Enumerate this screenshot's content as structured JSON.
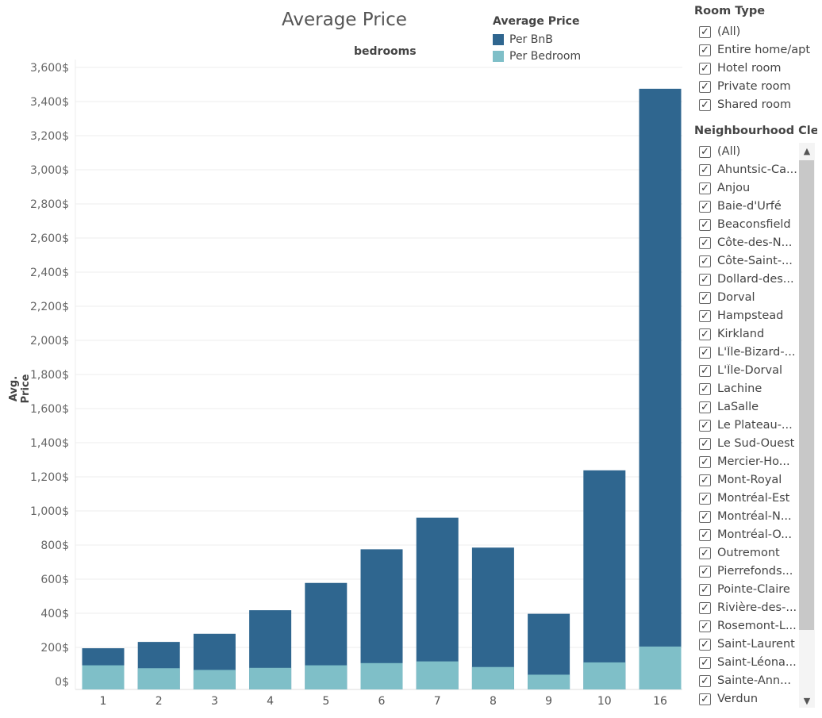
{
  "chart_data": {
    "type": "bar",
    "stacked": true,
    "title": "Average Price",
    "subtitle": "bedrooms",
    "ylabel": "Avg. Price",
    "xlabel": "",
    "ylim": [
      0,
      3600
    ],
    "yticks": [
      0,
      200,
      400,
      600,
      800,
      1000,
      1200,
      1400,
      1600,
      1800,
      2000,
      2200,
      2400,
      2600,
      2800,
      3000,
      3200,
      3400,
      3600
    ],
    "ytick_labels": [
      "0$",
      "200$",
      "400$",
      "600$",
      "800$",
      "1,000$",
      "1,200$",
      "1,400$",
      "1,600$",
      "1,800$",
      "2,000$",
      "2,200$",
      "2,400$",
      "2,600$",
      "2,800$",
      "3,000$",
      "3,200$",
      "3,400$",
      "3,600$"
    ],
    "categories": [
      "1",
      "2",
      "3",
      "4",
      "5",
      "6",
      "7",
      "8",
      "9",
      "10",
      "16"
    ],
    "series": [
      {
        "name": "Per Bedroom",
        "color": "#7fbfc8",
        "values": [
          95,
          78,
          68,
          80,
          95,
          108,
          118,
          85,
          40,
          112,
          205
        ]
      },
      {
        "name": "Per BnB",
        "color": "#2f668f",
        "values": [
          195,
          232,
          280,
          418,
          578,
          775,
          960,
          785,
          397,
          1238,
          3475
        ]
      }
    ],
    "legend": {
      "title": "Average Price",
      "position": "top-right",
      "items": [
        {
          "label": "Per BnB",
          "color": "#2f668f"
        },
        {
          "label": "Per Bedroom",
          "color": "#7fbfc8"
        }
      ]
    },
    "grid": true
  },
  "filters": {
    "room_type": {
      "title": "Room Type",
      "items": [
        "(All)",
        "Entire home/apt",
        "Hotel room",
        "Private room",
        "Shared room"
      ]
    },
    "neighbourhood": {
      "title": "Neighbourhood Clea..",
      "items": [
        "(All)",
        "Ahuntsic-Ca...",
        "Anjou",
        "Baie-d'Urfé",
        "Beaconsfield",
        "Côte-des-N...",
        "Côte-Saint-...",
        "Dollard-des...",
        "Dorval",
        "Hampstead",
        "Kirkland",
        "L'Île-Bizard-...",
        "L'Île-Dorval",
        "Lachine",
        "LaSalle",
        "Le Plateau-...",
        "Le Sud-Ouest",
        "Mercier-Ho...",
        "Mont-Royal",
        "Montréal-Est",
        "Montréal-N...",
        "Montréal-O...",
        "Outremont",
        "Pierrefonds...",
        "Pointe-Claire",
        "Rivière-des-...",
        "Rosemont-L...",
        "Saint-Laurent",
        "Saint-Léona...",
        "Sainte-Ann...",
        "Verdun"
      ]
    }
  },
  "icons": {
    "check": "✓",
    "scroll_up": "▲",
    "scroll_down": "▼"
  }
}
